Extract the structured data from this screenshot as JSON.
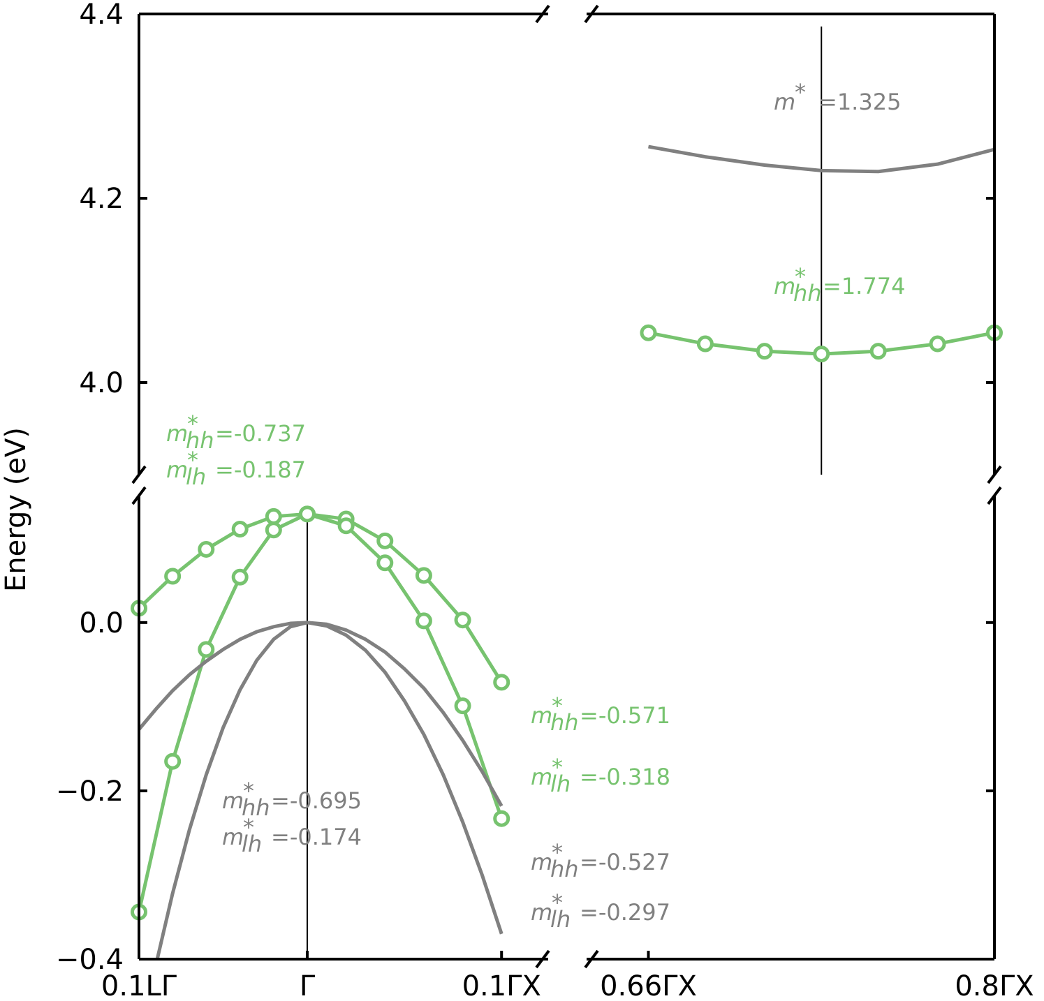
{
  "chart_data": {
    "type": "line",
    "ylabel": "Energy (eV)",
    "panels": [
      {
        "xlim": [
          -0.0866,
          0.124
        ],
        "ylim": [
          -0.4,
          0.15
        ],
        "xticks": [
          {
            "value": -0.0866,
            "label": "0.1LΓ"
          },
          {
            "value": 0,
            "label": "Γ"
          },
          {
            "value": 0.1,
            "label": "0.1ΓX"
          }
        ],
        "yticks": [
          {
            "value": -0.4,
            "label": "−0.4"
          },
          {
            "value": -0.2,
            "label": "−0.2"
          },
          {
            "value": 0,
            "label": "0.0"
          }
        ],
        "vline": 0,
        "series": [
          {
            "color": "#77c36f",
            "markers": true,
            "x": [
              -0.0866,
              -0.0693,
              -0.052,
              -0.0346,
              -0.0173,
              0,
              0.02,
              0.04,
              0.06,
              0.08,
              0.1
            ],
            "values": [
              0.017,
              0.055,
              0.087,
              0.111,
              0.126,
              0.129,
              0.123,
              0.097,
              0.056,
              0.003,
              -0.071
            ]
          },
          {
            "color": "#77c36f",
            "markers": true,
            "x": [
              -0.0866,
              -0.0693,
              -0.052,
              -0.0346,
              -0.0173,
              0,
              0.02,
              0.04,
              0.06,
              0.08,
              0.1
            ],
            "values": [
              -0.344,
              -0.165,
              -0.032,
              0.054,
              0.11,
              0.129,
              0.115,
              0.071,
              0.002,
              -0.099,
              -0.233
            ]
          },
          {
            "color": "#808080",
            "markers": false,
            "x": [
              -0.0866,
              -0.0779,
              -0.0693,
              -0.0606,
              -0.052,
              -0.0433,
              -0.0346,
              -0.026,
              -0.0173,
              -0.0087,
              0,
              0.01,
              0.02,
              0.03,
              0.04,
              0.05,
              0.06,
              0.07,
              0.08,
              0.09,
              0.1
            ],
            "values": [
              -0.127,
              -0.103,
              -0.081,
              -0.062,
              -0.046,
              -0.032,
              -0.02,
              -0.011,
              -0.005,
              -0.001,
              0,
              -0.002,
              -0.009,
              -0.02,
              -0.035,
              -0.055,
              -0.078,
              -0.107,
              -0.14,
              -0.177,
              -0.218
            ]
          },
          {
            "color": "#808080",
            "markers": false,
            "x": [
              -0.0866,
              -0.0779,
              -0.0693,
              -0.0606,
              -0.052,
              -0.0433,
              -0.0346,
              -0.026,
              -0.0173,
              -0.0087,
              0,
              0.01,
              0.02,
              0.03,
              0.04,
              0.05,
              0.06,
              0.07,
              0.08,
              0.09,
              0.1
            ],
            "values": [
              null,
              -0.407,
              -0.322,
              -0.246,
              -0.181,
              -0.125,
              -0.08,
              -0.045,
              -0.02,
              -0.005,
              0,
              -0.004,
              -0.015,
              -0.033,
              -0.059,
              -0.093,
              -0.133,
              -0.181,
              -0.237,
              -0.3,
              -0.37
            ]
          }
        ]
      },
      {
        "xlim": [
          -0.0866,
          0.124
        ],
        "ylim": [
          3.9,
          4.4
        ],
        "yticks": [
          {
            "value": 4.0,
            "label": "4.0"
          },
          {
            "value": 4.2,
            "label": "4.2"
          },
          {
            "value": 4.4,
            "label": "4.4"
          }
        ],
        "series": []
      },
      {
        "xlim": [
          0.635,
          0.8
        ],
        "ylim": [
          3.9,
          4.4
        ],
        "yticks": [
          4,
          4.2,
          4.4
        ],
        "vline": 0.73,
        "series": [
          {
            "color": "#77c36f",
            "markers": true,
            "x": [
              0.66,
              0.683,
              0.707,
              0.73,
              0.753,
              0.777,
              0.8
            ],
            "values": [
              4.054,
              4.042,
              4.034,
              4.031,
              4.034,
              4.042,
              4.054
            ]
          },
          {
            "color": "#808080",
            "markers": false,
            "x": [
              0.66,
              0.683,
              0.707,
              0.73,
              0.753,
              0.777,
              0.8
            ],
            "values": [
              4.256,
              4.245,
              4.236,
              4.23,
              4.229,
              4.237,
              4.253
            ]
          }
        ]
      },
      {
        "xlim": [
          0.635,
          0.8
        ],
        "ylim": [
          -0.4,
          0.15
        ],
        "xticks": [
          {
            "value": 0.66,
            "label": "0.66ΓX"
          },
          {
            "value": 0.8,
            "label": "0.8ΓX"
          }
        ],
        "yticks": [
          -0.4,
          -0.2,
          0
        ],
        "series": []
      }
    ],
    "annotations": [
      {
        "symbol": "m",
        "sup": "*",
        "sub": "hh",
        "text": "=-0.737",
        "color": "#77c36f"
      },
      {
        "symbol": "m",
        "sup": "*",
        "sub": "lh",
        "text": "=-0.187",
        "color": "#77c36f"
      },
      {
        "symbol": "m",
        "sup": "*",
        "sub": "hh",
        "text": "=-0.571",
        "color": "#77c36f"
      },
      {
        "symbol": "m",
        "sup": "*",
        "sub": "lh",
        "text": "=-0.318",
        "color": "#77c36f"
      },
      {
        "symbol": "m",
        "sup": "*",
        "sub": "hh",
        "text": "=-0.695",
        "color": "#808080"
      },
      {
        "symbol": "m",
        "sup": "*",
        "sub": "lh",
        "text": "=-0.174",
        "color": "#808080"
      },
      {
        "symbol": "m",
        "sup": "*",
        "sub": "hh",
        "text": "=-0.527",
        "color": "#808080"
      },
      {
        "symbol": "m",
        "sup": "*",
        "sub": "lh",
        "text": "=-0.297",
        "color": "#808080"
      },
      {
        "symbol": "m",
        "sup": "*",
        "text": "=1.325",
        "color": "#808080"
      },
      {
        "symbol": "m",
        "sup": "*",
        "sub": "hh",
        "text": "=1.774",
        "color": "#77c36f"
      }
    ]
  }
}
